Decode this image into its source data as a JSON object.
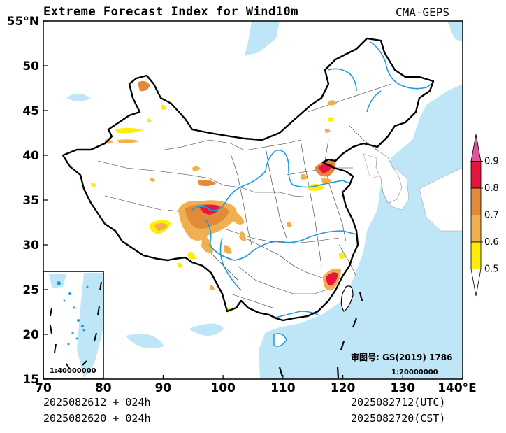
{
  "title": "Extreme Forecast Index for Wind10m",
  "model": "CMA-GEPS",
  "footer": {
    "init_utc": "2025082612 + 024h",
    "init_cst": "2025082620 + 024h",
    "valid_utc": "2025082712(UTC)",
    "valid_cst": "2025082720(CST)"
  },
  "map": {
    "lat_ticks": [
      {
        "value": 55,
        "label": "55°N"
      },
      {
        "value": 50,
        "label": "50"
      },
      {
        "value": 45,
        "label": "45"
      },
      {
        "value": 40,
        "label": "40"
      },
      {
        "value": 35,
        "label": "35"
      },
      {
        "value": 30,
        "label": "30"
      },
      {
        "value": 25,
        "label": "25"
      },
      {
        "value": 20,
        "label": "20"
      },
      {
        "value": 15,
        "label": "15"
      }
    ],
    "lon_ticks": [
      {
        "value": 70,
        "label": "70"
      },
      {
        "value": 80,
        "label": "80"
      },
      {
        "value": 90,
        "label": "90"
      },
      {
        "value": 100,
        "label": "100"
      },
      {
        "value": 110,
        "label": "110"
      },
      {
        "value": 120,
        "label": "120"
      },
      {
        "value": 130,
        "label": "130"
      },
      {
        "value": 140,
        "label": "140°E"
      }
    ],
    "approval_number": "审图号: GS(2019) 1786",
    "main_scale": "1:20000000",
    "inset_scale": "1:40000000",
    "colors": {
      "sea": "#bfe6f7",
      "river": "#1e9be0",
      "border": "#000000"
    }
  },
  "colorbar": {
    "levels": [
      "0.5",
      "0.6",
      "0.7",
      "0.8",
      "0.9"
    ],
    "colors": [
      "#ffffff",
      "#ffee00",
      "#f0b050",
      "#e08a3a",
      "#e8153c",
      "#e0559a"
    ]
  }
}
